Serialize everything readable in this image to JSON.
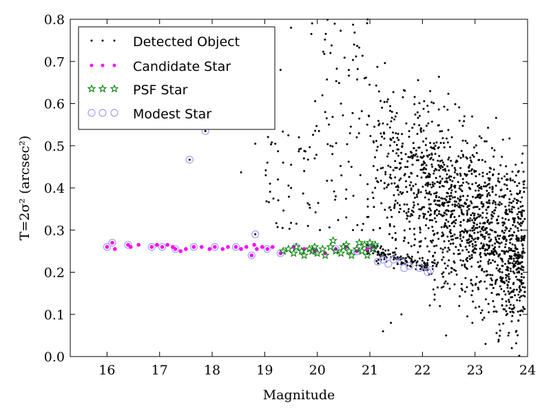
{
  "chart_data": {
    "type": "scatter",
    "title": "",
    "xlabel": "Magnitude",
    "ylabel": "T=2σ² (arcsec²)",
    "xlim": [
      15.3,
      24.0
    ],
    "ylim": [
      0.0,
      0.8
    ],
    "x_ticks": [
      "16",
      "17",
      "18",
      "19",
      "20",
      "21",
      "22",
      "23",
      "24"
    ],
    "y_ticks": [
      "0.0",
      "0.1",
      "0.2",
      "0.3",
      "0.4",
      "0.5",
      "0.6",
      "0.7",
      "0.8"
    ],
    "grid": false,
    "legend_position": "top-left",
    "series": [
      {
        "name": "Detected Object",
        "marker": "dot",
        "color": "#000000",
        "distribution": "dense cloud spanning magnitude 21 to 24 with T from 0.0 to 0.8, concentrated around T 0.2-0.5; sparse outliers at magnitude 18-21 with T 0.4-0.8",
        "points": [
          [
            17.57,
            0.467
          ],
          [
            17.87,
            0.535
          ],
          [
            18.82,
            0.29
          ],
          [
            18.55,
            0.437
          ],
          [
            18.82,
            0.505
          ],
          [
            19.05,
            0.46
          ],
          [
            19.02,
            0.43
          ],
          [
            19.1,
            0.41
          ],
          [
            19.2,
            0.505
          ],
          [
            19.25,
            0.42
          ],
          [
            19.35,
            0.46
          ],
          [
            19.5,
            0.4
          ],
          [
            19.65,
            0.52
          ],
          [
            19.75,
            0.44
          ],
          [
            19.85,
            0.36
          ],
          [
            19.95,
            0.47
          ],
          [
            20.05,
            0.3
          ],
          [
            20.15,
            0.58
          ],
          [
            20.25,
            0.5
          ],
          [
            20.35,
            0.38
          ],
          [
            20.45,
            0.6
          ],
          [
            20.55,
            0.33
          ],
          [
            20.65,
            0.45
          ],
          [
            20.75,
            0.52
          ],
          [
            20.85,
            0.3
          ],
          [
            20.95,
            0.55
          ],
          [
            19.5,
            0.78
          ],
          [
            19.3,
            0.68
          ],
          [
            19.1,
            0.78
          ],
          [
            20.7,
            0.74
          ],
          [
            20.9,
            0.66
          ],
          [
            20.25,
            0.72
          ],
          [
            21.25,
            0.06
          ],
          [
            21.4,
            0.08
          ],
          [
            21.6,
            0.1
          ],
          [
            22.45,
            0.05
          ],
          [
            22.7,
            0.12
          ],
          [
            22.95,
            0.08
          ],
          [
            23.2,
            0.03
          ],
          [
            23.45,
            0.04
          ],
          [
            23.7,
            0.02
          ],
          [
            23.85,
            0.14
          ]
        ]
      },
      {
        "name": "Candidate Star",
        "marker": "circle",
        "color": "#ff00ff",
        "distribution": "tight horizontal band at T about 0.25-0.27 spanning magnitude 16 to 21",
        "points": [
          [
            16.0,
            0.26
          ],
          [
            16.1,
            0.27
          ],
          [
            16.15,
            0.255
          ],
          [
            16.4,
            0.265
          ],
          [
            16.45,
            0.26
          ],
          [
            16.6,
            0.265
          ],
          [
            16.85,
            0.26
          ],
          [
            16.95,
            0.265
          ],
          [
            17.05,
            0.26
          ],
          [
            17.15,
            0.265
          ],
          [
            17.25,
            0.26
          ],
          [
            17.3,
            0.255
          ],
          [
            17.4,
            0.25
          ],
          [
            17.5,
            0.255
          ],
          [
            17.65,
            0.26
          ],
          [
            17.8,
            0.26
          ],
          [
            17.95,
            0.255
          ],
          [
            18.05,
            0.26
          ],
          [
            18.2,
            0.255
          ],
          [
            18.3,
            0.26
          ],
          [
            18.45,
            0.26
          ],
          [
            18.55,
            0.255
          ],
          [
            18.65,
            0.26
          ],
          [
            18.75,
            0.24
          ],
          [
            18.8,
            0.265
          ],
          [
            18.85,
            0.255
          ],
          [
            18.95,
            0.26
          ],
          [
            19.05,
            0.255
          ],
          [
            19.15,
            0.26
          ],
          [
            19.3,
            0.245
          ],
          [
            19.55,
            0.26
          ],
          [
            19.75,
            0.255
          ],
          [
            19.95,
            0.25
          ],
          [
            20.15,
            0.245
          ],
          [
            20.35,
            0.255
          ],
          [
            20.55,
            0.26
          ],
          [
            20.75,
            0.25
          ],
          [
            20.95,
            0.255
          ],
          [
            21.05,
            0.26
          ]
        ]
      },
      {
        "name": "PSF Star",
        "marker": "star",
        "color": "#008000",
        "distribution": "band at T about 0.24-0.28 spanning magnitude 19.3 to 21.1",
        "points": [
          [
            19.35,
            0.25
          ],
          [
            19.45,
            0.255
          ],
          [
            19.55,
            0.245
          ],
          [
            19.6,
            0.26
          ],
          [
            19.7,
            0.25
          ],
          [
            19.75,
            0.24
          ],
          [
            19.85,
            0.255
          ],
          [
            19.9,
            0.25
          ],
          [
            19.95,
            0.26
          ],
          [
            20.0,
            0.245
          ],
          [
            20.1,
            0.255
          ],
          [
            20.15,
            0.24
          ],
          [
            20.25,
            0.26
          ],
          [
            20.3,
            0.275
          ],
          [
            20.35,
            0.25
          ],
          [
            20.45,
            0.245
          ],
          [
            20.5,
            0.26
          ],
          [
            20.55,
            0.265
          ],
          [
            20.6,
            0.25
          ],
          [
            20.65,
            0.24
          ],
          [
            20.75,
            0.255
          ],
          [
            20.8,
            0.27
          ],
          [
            20.85,
            0.25
          ],
          [
            20.9,
            0.265
          ],
          [
            20.95,
            0.24
          ],
          [
            21.0,
            0.27
          ],
          [
            21.05,
            0.255
          ],
          [
            21.1,
            0.265
          ]
        ]
      },
      {
        "name": "Modest Star",
        "marker": "open-circle",
        "color": "#a0a0ff",
        "distribution": "open circles covering the stellar locus from magnitude 16 to 22.2, dipping to T about 0.2 at the faint end, plus a few outliers",
        "points": [
          [
            16.0,
            0.26
          ],
          [
            16.1,
            0.27
          ],
          [
            16.4,
            0.265
          ],
          [
            16.85,
            0.26
          ],
          [
            17.05,
            0.26
          ],
          [
            17.3,
            0.255
          ],
          [
            17.57,
            0.467
          ],
          [
            17.65,
            0.26
          ],
          [
            17.87,
            0.535
          ],
          [
            18.05,
            0.26
          ],
          [
            18.45,
            0.26
          ],
          [
            18.75,
            0.24
          ],
          [
            18.82,
            0.29
          ],
          [
            19.05,
            0.255
          ],
          [
            19.3,
            0.245
          ],
          [
            19.6,
            0.26
          ],
          [
            19.95,
            0.25
          ],
          [
            20.35,
            0.255
          ],
          [
            20.75,
            0.25
          ],
          [
            21.05,
            0.26
          ],
          [
            21.15,
            0.225
          ],
          [
            21.25,
            0.23
          ],
          [
            21.35,
            0.22
          ],
          [
            21.45,
            0.23
          ],
          [
            21.6,
            0.225
          ],
          [
            21.65,
            0.21
          ],
          [
            21.75,
            0.215
          ],
          [
            21.95,
            0.21
          ],
          [
            22.1,
            0.2
          ],
          [
            22.15,
            0.205
          ]
        ]
      }
    ]
  }
}
